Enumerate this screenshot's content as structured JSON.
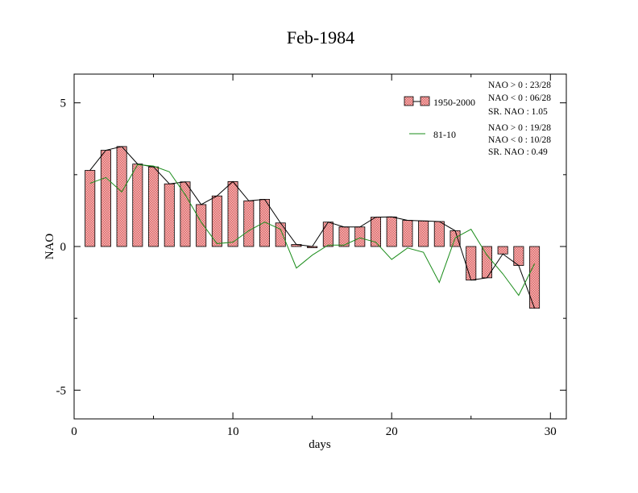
{
  "chart_data": {
    "type": "bar",
    "title": "Feb-1984",
    "xlabel": "days",
    "ylabel": "NAO",
    "xlim": [
      0,
      31
    ],
    "ylim": [
      -6,
      6
    ],
    "x_ticks": [
      0,
      10,
      20,
      30
    ],
    "y_ticks": [
      -5,
      0,
      5
    ],
    "x_tick_labels": [
      "0",
      "10",
      "20",
      "30"
    ],
    "y_tick_labels": [
      "-5",
      "0",
      "5"
    ],
    "grid": false,
    "legend_placement": "top-right",
    "x": [
      1,
      2,
      3,
      4,
      5,
      6,
      7,
      8,
      9,
      10,
      11,
      12,
      13,
      14,
      15,
      16,
      17,
      18,
      19,
      20,
      21,
      22,
      23,
      24,
      25,
      26,
      27,
      28,
      29
    ],
    "series": [
      {
        "name": "1950-2000",
        "kind": "bar",
        "color": "#e06666",
        "values": [
          2.65,
          3.35,
          3.48,
          2.87,
          2.77,
          2.18,
          2.25,
          1.46,
          1.76,
          2.26,
          1.59,
          1.64,
          0.82,
          0.07,
          0.0,
          0.85,
          0.68,
          0.68,
          1.02,
          1.03,
          0.91,
          0.89,
          0.87,
          0.55,
          -1.17,
          -1.09,
          -0.26,
          -0.66,
          -2.15
        ]
      },
      {
        "name": "81-10",
        "kind": "line",
        "color": "#1a8c1a",
        "values": [
          2.2,
          2.4,
          1.9,
          2.85,
          2.8,
          2.6,
          1.8,
          0.85,
          0.1,
          0.15,
          0.55,
          0.85,
          0.6,
          -0.75,
          -0.3,
          0.05,
          0.05,
          0.3,
          0.15,
          -0.45,
          -0.05,
          -0.2,
          -1.25,
          0.3,
          0.6,
          -0.3,
          -0.95,
          -1.7,
          -0.6
        ]
      }
    ],
    "stats": [
      {
        "series": "1950-2000",
        "lines": [
          "NAO > 0 : 23/28",
          "NAO < 0 : 06/28",
          "SR. NAO :  1.05"
        ]
      },
      {
        "series": "81-10",
        "lines": [
          "NAO > 0 : 19/28",
          "NAO < 0 : 10/28",
          "SR. NAO :  0.49"
        ]
      }
    ]
  }
}
